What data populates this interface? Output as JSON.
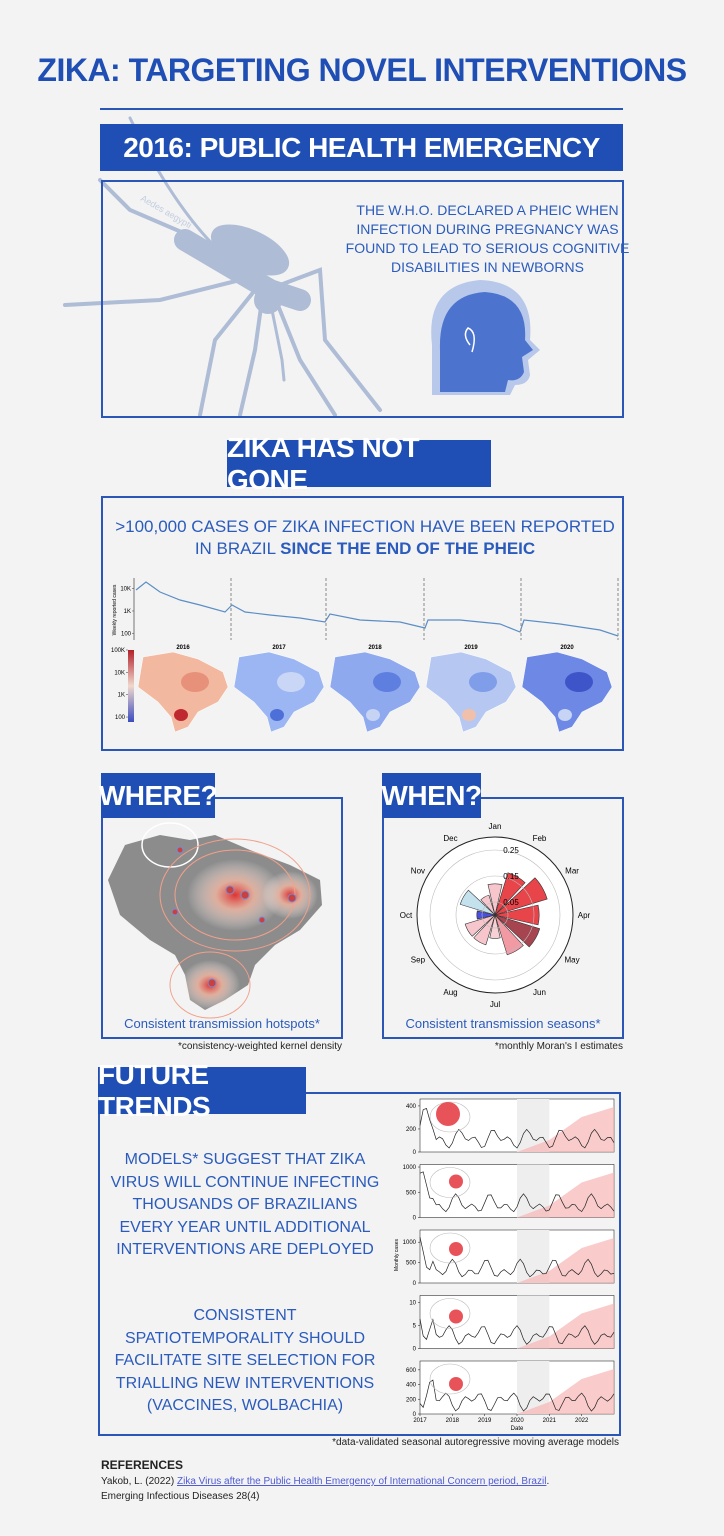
{
  "header": {
    "title": "ZIKA: TARGETING NOVEL INTERVENTIONS"
  },
  "emergency": {
    "heading": "2016: PUBLIC HEALTH EMERGENCY",
    "text": "THE W.H.O. DECLARED A PHEIC WHEN INFECTION DURING PREGNANCY WAS FOUND TO LEAD TO SERIOUS COGNITIVE DISABILITIES IN NEWBORNS",
    "mosquito_label": "Aedes aegypti"
  },
  "not_gone": {
    "heading": "ZIKA HAS NOT GONE",
    "text_plain": ">100,000 CASES OF ZIKA INFECTION HAVE BEEN REPORTED IN BRAZIL",
    "text_bold": "SINCE THE END OF THE PHEIC",
    "chart": {
      "y_label": "Weekly reported cases",
      "ylim": [
        50,
        30000
      ],
      "log_scale": true,
      "yticks": [
        {
          "value": 10000,
          "label": "10K"
        },
        {
          "value": 1000,
          "label": "1K"
        },
        100
      ],
      "map_years": [
        "2016",
        "2017",
        "2018",
        "2019",
        "2020"
      ],
      "scale_lim": [
        60,
        100000
      ],
      "scale_ticks": [
        {
          "value": 100000,
          "label": "100K"
        },
        {
          "value": 10000,
          "label": "10K"
        },
        {
          "value": 1000,
          "label": "1K"
        },
        100
      ]
    }
  },
  "where": {
    "heading": "WHERE?",
    "caption": "Consistent transmission hotspots*",
    "note": "*consistency-weighted kernel density"
  },
  "when": {
    "heading": "WHEN?",
    "chart": {
      "type": "polar-bar",
      "categories": [
        "Jan",
        "Feb",
        "Mar",
        "Apr",
        "May",
        "Jun",
        "Jul",
        "Aug",
        "Sep",
        "Oct",
        "Nov",
        "Dec"
      ],
      "values": [
        0.12,
        0.17,
        0.21,
        0.17,
        0.18,
        0.16,
        0.09,
        0.12,
        0.12,
        0.07,
        0.14,
        0.08
      ],
      "colors": [
        "#f6c6cc",
        "#e8454b",
        "#e8454b",
        "#e8454b",
        "#a64550",
        "#f19aa3",
        "#f6d0d4",
        "#f6c6cc",
        "#f6c6cc",
        "#4b4fe0",
        "#c4e1ee",
        "#f6c6cc"
      ],
      "rlim": [
        0,
        0.3
      ],
      "rticks": [
        0.25,
        0.15,
        0.05
      ]
    },
    "caption": "Consistent transmission seasons*",
    "note": "*monthly Moran's I estimates"
  },
  "future": {
    "heading": "FUTURE TRENDS",
    "paragraphs": [
      "MODELS* SUGGEST THAT ZIKA VIRUS WILL CONTINUE INFECTING THOUSANDS OF BRAZILIANS EVERY YEAR UNTIL ADDITIONAL INTERVENTIONS ARE DEPLOYED",
      "CONSISTENT SPATIOTEMPORALITY SHOULD FACILITATE SITE SELECTION FOR TRIALLING NEW INTERVENTIONS (VACCINES, WOLBACHIA)"
    ],
    "chart": {
      "y_label": "Monthly cases",
      "x_label": "Date",
      "xlim": [
        2017,
        2023
      ],
      "xticks": [
        2017,
        2018,
        2019,
        2020,
        2021,
        2022
      ],
      "panels": [
        {
          "ylim": [
            0,
            460
          ],
          "yticks": [
            400,
            200,
            0
          ]
        },
        {
          "ylim": [
            0,
            1050
          ],
          "yticks": [
            1000,
            500,
            0
          ]
        },
        {
          "ylim": [
            0,
            1300
          ],
          "yticks": [
            1000,
            500,
            0
          ]
        },
        {
          "ylim": [
            0,
            11.5
          ],
          "yticks": [
            10,
            5,
            0
          ]
        },
        {
          "ylim": [
            0,
            720
          ],
          "yticks": [
            600,
            400,
            200,
            0
          ]
        }
      ]
    },
    "note": "*data-validated seasonal autoregressive moving average models"
  },
  "references": {
    "heading": "REFERENCES",
    "author": "Yakob, L. (2022)",
    "link": "Zika Virus after the Public Health Emergency of International Concern period, Brazil",
    "after": ".",
    "journal": "Emerging Infectious Diseases 28(4)"
  }
}
